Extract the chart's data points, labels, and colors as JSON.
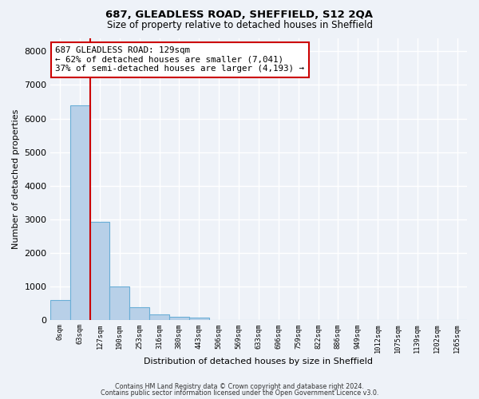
{
  "title_line1": "687, GLEADLESS ROAD, SHEFFIELD, S12 2QA",
  "title_line2": "Size of property relative to detached houses in Sheffield",
  "xlabel": "Distribution of detached houses by size in Sheffield",
  "ylabel": "Number of detached properties",
  "categories": [
    "0sqm",
    "63sqm",
    "127sqm",
    "190sqm",
    "253sqm",
    "316sqm",
    "380sqm",
    "443sqm",
    "506sqm",
    "569sqm",
    "633sqm",
    "696sqm",
    "759sqm",
    "822sqm",
    "886sqm",
    "949sqm",
    "1012sqm",
    "1075sqm",
    "1139sqm",
    "1202sqm",
    "1265sqm"
  ],
  "bar_heights": [
    600,
    6400,
    2920,
    990,
    370,
    160,
    90,
    70,
    0,
    0,
    0,
    0,
    0,
    0,
    0,
    0,
    0,
    0,
    0,
    0,
    0
  ],
  "bar_color": "#b8d0e8",
  "bar_edge_color": "#6aaed6",
  "vline_color": "#cc0000",
  "annotation_text": "687 GLEADLESS ROAD: 129sqm\n← 62% of detached houses are smaller (7,041)\n37% of semi-detached houses are larger (4,193) →",
  "annotation_box_color": "white",
  "annotation_box_edge_color": "#cc0000",
  "ylim": [
    0,
    8400
  ],
  "yticks": [
    0,
    1000,
    2000,
    3000,
    4000,
    5000,
    6000,
    7000,
    8000
  ],
  "footer_line1": "Contains HM Land Registry data © Crown copyright and database right 2024.",
  "footer_line2": "Contains public sector information licensed under the Open Government Licence v3.0.",
  "background_color": "#eef2f8",
  "grid_color": "#ffffff"
}
